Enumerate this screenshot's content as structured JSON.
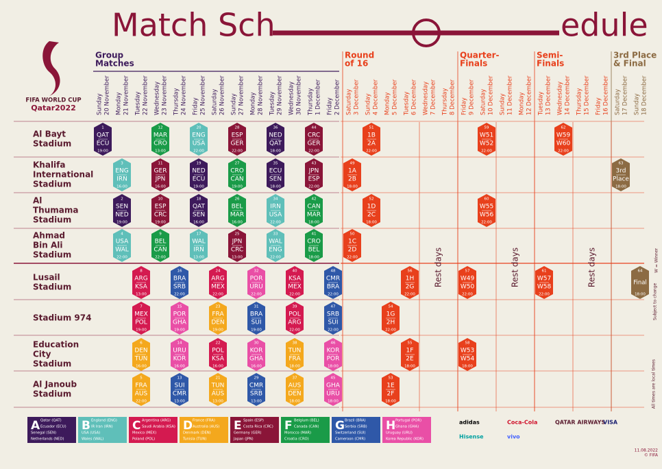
{
  "header": {
    "title_left": "Match Sch",
    "title_right": "edule",
    "logo_top": "FIFA WORLD CUP",
    "logo_bottom": "Qatar2022"
  },
  "sections": [
    {
      "label": [
        "Group",
        "Matches"
      ],
      "date": "20 November",
      "color": "#3d1a5b"
    },
    {
      "label": [
        "Round",
        "of 16"
      ],
      "date": "3 December",
      "color": "#e8401c"
    },
    {
      "label": [
        "Quarter-",
        "Finals"
      ],
      "date": "9 December",
      "color": "#e8401c"
    },
    {
      "label": [
        "Semi-",
        "Finals"
      ],
      "date": "13 December",
      "color": "#e8401c"
    },
    {
      "label": [
        "3rd Place",
        "& Final"
      ],
      "date": "17 December",
      "color": "#8c6b43"
    }
  ],
  "days": [
    {
      "weekday": "Sunday",
      "date": "20 November"
    },
    {
      "weekday": "Monday",
      "date": "21 November"
    },
    {
      "weekday": "Tuesday",
      "date": "22 November"
    },
    {
      "weekday": "Wednesday",
      "date": "23 November"
    },
    {
      "weekday": "Thursday",
      "date": "24 November"
    },
    {
      "weekday": "Friday",
      "date": "25 November"
    },
    {
      "weekday": "Saturday",
      "date": "26 November"
    },
    {
      "weekday": "Sunday",
      "date": "27 November"
    },
    {
      "weekday": "Monday",
      "date": "28 November"
    },
    {
      "weekday": "Tuesday",
      "date": "29 November"
    },
    {
      "weekday": "Wednesday",
      "date": "30 November"
    },
    {
      "weekday": "Thursday",
      "date": "1 December"
    },
    {
      "weekday": "Friday",
      "date": "2 December"
    },
    {
      "weekday": "Saturday",
      "date": "3 December"
    },
    {
      "weekday": "Sunday",
      "date": "4 December"
    },
    {
      "weekday": "Monday",
      "date": "5 December"
    },
    {
      "weekday": "Tuesday",
      "date": "6 December"
    },
    {
      "weekday": "Wednesday",
      "date": "7 December"
    },
    {
      "weekday": "Thursday",
      "date": "8 December"
    },
    {
      "weekday": "Friday",
      "date": "9 December"
    },
    {
      "weekday": "Saturday",
      "date": "10 December"
    },
    {
      "weekday": "Sunday",
      "date": "11 December"
    },
    {
      "weekday": "Monday",
      "date": "12 December"
    },
    {
      "weekday": "Tuesday",
      "date": "13 December"
    },
    {
      "weekday": "Wednesday",
      "date": "14 December"
    },
    {
      "weekday": "Thursday",
      "date": "15 December"
    },
    {
      "weekday": "Friday",
      "date": "16 December"
    },
    {
      "weekday": "Saturday",
      "date": "17 December"
    },
    {
      "weekday": "Sunday",
      "date": "18 December"
    }
  ],
  "rest_days": [
    {
      "label": "Rest days",
      "dates": [
        "7 December",
        "8 December"
      ]
    },
    {
      "label": "Rest days",
      "dates": [
        "11 December",
        "12 December"
      ]
    },
    {
      "label": "Rest days",
      "dates": [
        "15 December",
        "16 December"
      ]
    }
  ],
  "knockout_color": "#e8401c",
  "stadiums": [
    {
      "lines": [
        "Al Bayt",
        "Stadium"
      ],
      "matches": [
        {
          "no": "1",
          "date": "20 November",
          "home": "QAT",
          "away": "ECU",
          "time": "19:00",
          "group": "A"
        },
        {
          "no": "12",
          "date": "23 November",
          "home": "MAR",
          "away": "CRO",
          "time": "13:00",
          "group": "F"
        },
        {
          "no": "20",
          "date": "25 November",
          "home": "ENG",
          "away": "USA",
          "time": "22:00",
          "group": "B"
        },
        {
          "no": "28",
          "date": "27 November",
          "home": "ESP",
          "away": "GER",
          "time": "22:00",
          "group": "E"
        },
        {
          "no": "36",
          "date": "29 November",
          "home": "NED",
          "away": "QAT",
          "time": "18:00",
          "group": "A"
        },
        {
          "no": "44",
          "date": "1 December",
          "home": "CRC",
          "away": "GER",
          "time": "22:00",
          "group": "E"
        },
        {
          "no": "51",
          "date": "4 December",
          "home": "1B",
          "away": "2A",
          "time": "22:00"
        },
        {
          "no": "59",
          "date": "10 December",
          "home": "W51",
          "away": "W52",
          "time": "22:00"
        },
        {
          "no": "62",
          "date": "14 December",
          "home": "W59",
          "away": "W60",
          "time": "22:00"
        }
      ]
    },
    {
      "lines": [
        "Khalifa",
        "International",
        "Stadium"
      ],
      "matches": [
        {
          "no": "3",
          "date": "21 November",
          "home": "ENG",
          "away": "IRN",
          "time": "16:00",
          "group": "B"
        },
        {
          "no": "11",
          "date": "23 November",
          "home": "GER",
          "away": "JPN",
          "time": "16:00",
          "group": "E"
        },
        {
          "no": "19",
          "date": "25 November",
          "home": "NED",
          "away": "ECU",
          "time": "19:00",
          "group": "A"
        },
        {
          "no": "27",
          "date": "27 November",
          "home": "CRO",
          "away": "CAN",
          "time": "19:00",
          "group": "F"
        },
        {
          "no": "35",
          "date": "29 November",
          "home": "ECU",
          "away": "SEN",
          "time": "18:00",
          "group": "A"
        },
        {
          "no": "43",
          "date": "1 December",
          "home": "JPN",
          "away": "ESP",
          "time": "22:00",
          "group": "E"
        },
        {
          "no": "49",
          "date": "3 December",
          "home": "1A",
          "away": "2B",
          "time": "18:00"
        },
        {
          "no": "63",
          "date": "17 December",
          "home": "3rd",
          "away": "Place",
          "time": "18:00",
          "color": "#8c6b43"
        }
      ]
    },
    {
      "lines": [
        "Al",
        "Thumama",
        "Stadium"
      ],
      "matches": [
        {
          "no": "2",
          "date": "21 November",
          "home": "SEN",
          "away": "NED",
          "time": "19:00",
          "group": "A"
        },
        {
          "no": "10",
          "date": "23 November",
          "home": "ESP",
          "away": "CRC",
          "time": "19:00",
          "group": "E"
        },
        {
          "no": "18",
          "date": "25 November",
          "home": "QAT",
          "away": "SEN",
          "time": "16:00",
          "group": "A"
        },
        {
          "no": "26",
          "date": "27 November",
          "home": "BEL",
          "away": "MAR",
          "time": "16:00",
          "group": "F"
        },
        {
          "no": "34",
          "date": "29 November",
          "home": "IRN",
          "away": "USA",
          "time": "22:00",
          "group": "B"
        },
        {
          "no": "42",
          "date": "1 December",
          "home": "CAN",
          "away": "MAR",
          "time": "18:00",
          "group": "F"
        },
        {
          "no": "52",
          "date": "4 December",
          "home": "1D",
          "away": "2C",
          "time": "18:00"
        },
        {
          "no": "60",
          "date": "10 December",
          "home": "W55",
          "away": "W56",
          "time": "22:00"
        }
      ]
    },
    {
      "lines": [
        "Ahmad",
        "Bin Ali",
        "Stadium"
      ],
      "matches": [
        {
          "no": "4",
          "date": "21 November",
          "home": "USA",
          "away": "WAL",
          "time": "22:00",
          "group": "B"
        },
        {
          "no": "9",
          "date": "23 November",
          "home": "BEL",
          "away": "CAN",
          "time": "22:00",
          "group": "F"
        },
        {
          "no": "17",
          "date": "25 November",
          "home": "WAL",
          "away": "IRN",
          "time": "13:00",
          "group": "B"
        },
        {
          "no": "25",
          "date": "27 November",
          "home": "JPN",
          "away": "CRC",
          "time": "13:00",
          "group": "E"
        },
        {
          "no": "33",
          "date": "29 November",
          "home": "WAL",
          "away": "ENG",
          "time": "22:00",
          "group": "B"
        },
        {
          "no": "41",
          "date": "1 December",
          "home": "CRO",
          "away": "BEL",
          "time": "18:00",
          "group": "F"
        },
        {
          "no": "50",
          "date": "3 December",
          "home": "1C",
          "away": "2D",
          "time": "22:00"
        }
      ]
    },
    {
      "lines": [
        "Lusail",
        "Stadium"
      ],
      "matches": [
        {
          "no": "8",
          "date": "22 November",
          "home": "ARG",
          "away": "KSA",
          "time": "13:00",
          "group": "C"
        },
        {
          "no": "16",
          "date": "24 November",
          "home": "BRA",
          "away": "SRB",
          "time": "22:00",
          "group": "G"
        },
        {
          "no": "24",
          "date": "26 November",
          "home": "ARG",
          "away": "MEX",
          "time": "22:00",
          "group": "C"
        },
        {
          "no": "32",
          "date": "28 November",
          "home": "POR",
          "away": "URU",
          "time": "22:00",
          "group": "H"
        },
        {
          "no": "40",
          "date": "30 November",
          "home": "KSA",
          "away": "MEX",
          "time": "22:00",
          "group": "C"
        },
        {
          "no": "48",
          "date": "2 December",
          "home": "CMR",
          "away": "BRA",
          "time": "22:00",
          "group": "G"
        },
        {
          "no": "56",
          "date": "6 December",
          "home": "1H",
          "away": "2G",
          "time": "22:00"
        },
        {
          "no": "57",
          "date": "9 December",
          "home": "W49",
          "away": "W50",
          "time": "22:00"
        },
        {
          "no": "61",
          "date": "13 December",
          "home": "W57",
          "away": "W58",
          "time": "22:00"
        },
        {
          "no": "64",
          "date": "18 December",
          "home": "Final",
          "time": "18:00",
          "color": "#8c6b43"
        }
      ]
    },
    {
      "lines": [
        "Stadium 974"
      ],
      "matches": [
        {
          "no": "7",
          "date": "22 November",
          "home": "MEX",
          "away": "POL",
          "time": "19:00",
          "group": "C"
        },
        {
          "no": "15",
          "date": "24 November",
          "home": "POR",
          "away": "GHA",
          "time": "19:00",
          "group": "H"
        },
        {
          "no": "23",
          "date": "26 November",
          "home": "FRA",
          "away": "DEN",
          "time": "19:00",
          "group": "D"
        },
        {
          "no": "31",
          "date": "28 November",
          "home": "BRA",
          "away": "SUI",
          "time": "19:00",
          "group": "G"
        },
        {
          "no": "39",
          "date": "30 November",
          "home": "POL",
          "away": "ARG",
          "time": "22:00",
          "group": "C"
        },
        {
          "no": "47",
          "date": "2 December",
          "home": "SRB",
          "away": "SUI",
          "time": "22:00",
          "group": "G"
        },
        {
          "no": "54",
          "date": "5 December",
          "home": "1G",
          "away": "2H",
          "time": "22:00"
        }
      ]
    },
    {
      "lines": [
        "Education",
        "City",
        "Stadium"
      ],
      "matches": [
        {
          "no": "6",
          "date": "22 November",
          "home": "DEN",
          "away": "TUN",
          "time": "16:00",
          "group": "D"
        },
        {
          "no": "14",
          "date": "24 November",
          "home": "URU",
          "away": "KOR",
          "time": "16:00",
          "group": "H"
        },
        {
          "no": "22",
          "date": "26 November",
          "home": "POL",
          "away": "KSA",
          "time": "16:00",
          "group": "C"
        },
        {
          "no": "30",
          "date": "28 November",
          "home": "KOR",
          "away": "GHA",
          "time": "16:00",
          "group": "H"
        },
        {
          "no": "38",
          "date": "30 November",
          "home": "TUN",
          "away": "FRA",
          "time": "18:00",
          "group": "D"
        },
        {
          "no": "46",
          "date": "2 December",
          "home": "KOR",
          "away": "POR",
          "time": "18:00",
          "group": "H"
        },
        {
          "no": "55",
          "date": "6 December",
          "home": "1F",
          "away": "2E",
          "time": "18:00"
        },
        {
          "no": "58",
          "date": "9 December",
          "home": "W53",
          "away": "W54",
          "time": "18:00"
        }
      ]
    },
    {
      "lines": [
        "Al Janoub",
        "Stadium"
      ],
      "matches": [
        {
          "no": "5",
          "date": "22 November",
          "home": "FRA",
          "away": "AUS",
          "time": "22:00",
          "group": "D"
        },
        {
          "no": "13",
          "date": "24 November",
          "home": "SUI",
          "away": "CMR",
          "time": "13:00",
          "group": "G"
        },
        {
          "no": "21",
          "date": "26 November",
          "home": "TUN",
          "away": "AUS",
          "time": "13:00",
          "group": "D"
        },
        {
          "no": "29",
          "date": "28 November",
          "home": "CMR",
          "away": "SRB",
          "time": "13:00",
          "group": "G"
        },
        {
          "no": "37",
          "date": "30 November",
          "home": "AUS",
          "away": "DEN",
          "time": "18:00",
          "group": "D"
        },
        {
          "no": "45",
          "date": "2 December",
          "home": "GHA",
          "away": "URU",
          "time": "18:00",
          "group": "H"
        },
        {
          "no": "53",
          "date": "5 December",
          "home": "1E",
          "away": "2F",
          "time": "18:00"
        }
      ]
    }
  ],
  "groups": [
    {
      "letter": "A",
      "color": "#3d1a5b",
      "teams": [
        "Qatar (QAT)",
        "Ecuador (ECU)",
        "Senegal (SEN)",
        "Netherlands (NED)"
      ]
    },
    {
      "letter": "B",
      "color": "#5fbfb9",
      "teams": [
        "England (ENG)",
        "IR Iran (IRN)",
        "USA (USA)",
        "Wales (WAL)"
      ]
    },
    {
      "letter": "C",
      "color": "#d41a50",
      "teams": [
        "Argentina (ARG)",
        "Saudi Arabia (KSA)",
        "Mexico (MEX)",
        "Poland (POL)"
      ]
    },
    {
      "letter": "D",
      "color": "#f4a81d",
      "teams": [
        "France (FRA)",
        "Australia (AUS)",
        "Denmark (DEN)",
        "Tunisia (TUN)"
      ]
    },
    {
      "letter": "E",
      "color": "#8a1538",
      "teams": [
        "Spain (ESP)",
        "Costa Rica (CRC)",
        "Germany (GER)",
        "Japan (JPN)"
      ]
    },
    {
      "letter": "F",
      "color": "#1a9b48",
      "teams": [
        "Belgium (BEL)",
        "Canada (CAN)",
        "Morocco (MAR)",
        "Croatia (CRO)"
      ]
    },
    {
      "letter": "G",
      "color": "#2f58a8",
      "teams": [
        "Brazil (BRA)",
        "Serbia (SRB)",
        "Switzerland (SUI)",
        "Cameroon (CMR)"
      ]
    },
    {
      "letter": "H",
      "color": "#e94fa6",
      "teams": [
        "Portugal (POR)",
        "Ghana (GHA)",
        "Uruguay (URU)",
        "Korea Republic (KOR)"
      ]
    }
  ],
  "notes": [
    "W = Winner",
    "Subject to change",
    "All times are local times"
  ],
  "sponsors": [
    "adidas",
    "Coca-Cola",
    "QATAR AIRWAYS",
    "VISA",
    "Hisense",
    "vivo"
  ],
  "footer": {
    "date": "11.08.2022",
    "copyright": "© FIFA"
  }
}
